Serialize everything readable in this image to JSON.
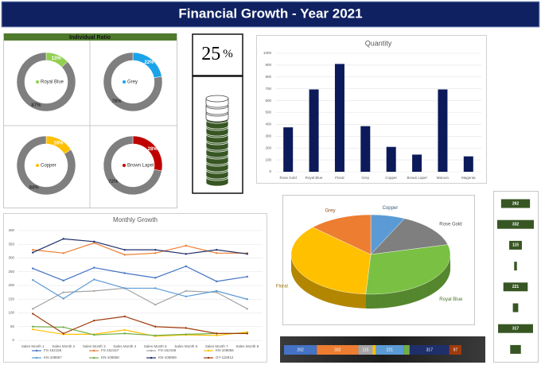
{
  "title": "Financial Growth - Year 2021",
  "individual_ratio_title": "Individual Ratio",
  "kpi": {
    "value": "25",
    "unit": "%"
  },
  "chart_data": [
    {
      "type": "donut",
      "label": "Royal Blue",
      "values": [
        13,
        87
      ],
      "value_labels": [
        "13%",
        "87%"
      ],
      "colors": [
        "#92d050",
        "#7f7f7f"
      ]
    },
    {
      "type": "donut",
      "label": "Grey",
      "values": [
        22,
        78
      ],
      "value_labels": [
        "22%",
        "78%"
      ],
      "colors": [
        "#1aa3e8",
        "#7f7f7f"
      ]
    },
    {
      "type": "donut",
      "label": "Copper",
      "values": [
        16,
        84
      ],
      "value_labels": [
        "16%",
        "84%"
      ],
      "colors": [
        "#ffc000",
        "#7f7f7f"
      ]
    },
    {
      "type": "donut",
      "label": "Brown Lapel",
      "values": [
        28,
        72
      ],
      "value_labels": [
        "28%",
        "72%"
      ],
      "colors": [
        "#c00000",
        "#7f7f7f"
      ]
    },
    {
      "type": "bar",
      "title": "Quantity",
      "categories": [
        "Rose Gold",
        "Royal Blue",
        "Floral",
        "Grey",
        "Copper",
        "Brown Lapel",
        "Maroon",
        "Magenta"
      ],
      "values": [
        375,
        695,
        910,
        385,
        210,
        145,
        695,
        130
      ],
      "color": "#0c1a5a",
      "ylim": [
        0,
        1000
      ],
      "yticks": [
        0,
        100,
        200,
        300,
        400,
        500,
        600,
        700,
        800,
        900,
        1000
      ],
      "grid": true
    },
    {
      "type": "line",
      "title": "Monthly Growth",
      "categories": [
        "Sales Month 1",
        "Sales Month 2",
        "Sales Month 3",
        "Sales Month 4",
        "Sales Month 5",
        "Sales Month 6",
        "Sales Month 7",
        "Sales Month 8"
      ],
      "series": [
        {
          "name": "FS-152156",
          "color": "#4472c4",
          "values": [
            262,
            218,
            265,
            245,
            228,
            270,
            215,
            232
          ]
        },
        {
          "name": "FS-152157",
          "color": "#ed7d31",
          "values": [
            330,
            318,
            355,
            312,
            318,
            345,
            318,
            318
          ]
        },
        {
          "name": "FS-152158",
          "color": "#a5a5a5",
          "values": [
            115,
            175,
            180,
            190,
            130,
            180,
            175,
            115
          ]
        },
        {
          "name": "KN-108866",
          "color": "#ffc000",
          "values": [
            40,
            22,
            22,
            38,
            15,
            20,
            18,
            30
          ]
        },
        {
          "name": "KN-108867",
          "color": "#5b9bd5",
          "values": [
            220,
            152,
            222,
            190,
            190,
            160,
            180,
            150
          ]
        },
        {
          "name": "KN-108868",
          "color": "#70ad47",
          "values": [
            50,
            48,
            20,
            25,
            18,
            22,
            25,
            25
          ]
        },
        {
          "name": "KN-108869",
          "color": "#1f2f6b",
          "values": [
            320,
            370,
            360,
            330,
            330,
            315,
            330,
            315
          ]
        },
        {
          "name": "GY-115812",
          "color": "#9e3b0c",
          "values": [
            97,
            25,
            72,
            87,
            50,
            45,
            25,
            25
          ]
        }
      ],
      "ylim": [
        0,
        400
      ],
      "yticks": [
        0,
        50,
        100,
        150,
        200,
        250,
        300,
        350,
        400
      ],
      "grid": true
    },
    {
      "type": "pie3d",
      "categories": [
        "Copper",
        "Rose Gold",
        "Royal Blue",
        "Floral",
        "Grey"
      ],
      "values": [
        7,
        14,
        30,
        36,
        13
      ],
      "colors": [
        "#5b9bd5",
        "#7f7f7f",
        "#7ac143",
        "#ffc000",
        "#ed7d31"
      ]
    },
    {
      "type": "hbar",
      "values": [
        262,
        332,
        115,
        25,
        221,
        49,
        317,
        97
      ],
      "color": "#375623"
    },
    {
      "type": "stacked",
      "values": [
        262,
        332,
        115,
        25,
        221,
        49,
        317,
        97
      ],
      "colors": [
        "#4472c4",
        "#ed7d31",
        "#a5a5a5",
        "#ffc000",
        "#5b9bd5",
        "#70ad47",
        "#1f2f6b",
        "#9e3b0c"
      ]
    }
  ]
}
